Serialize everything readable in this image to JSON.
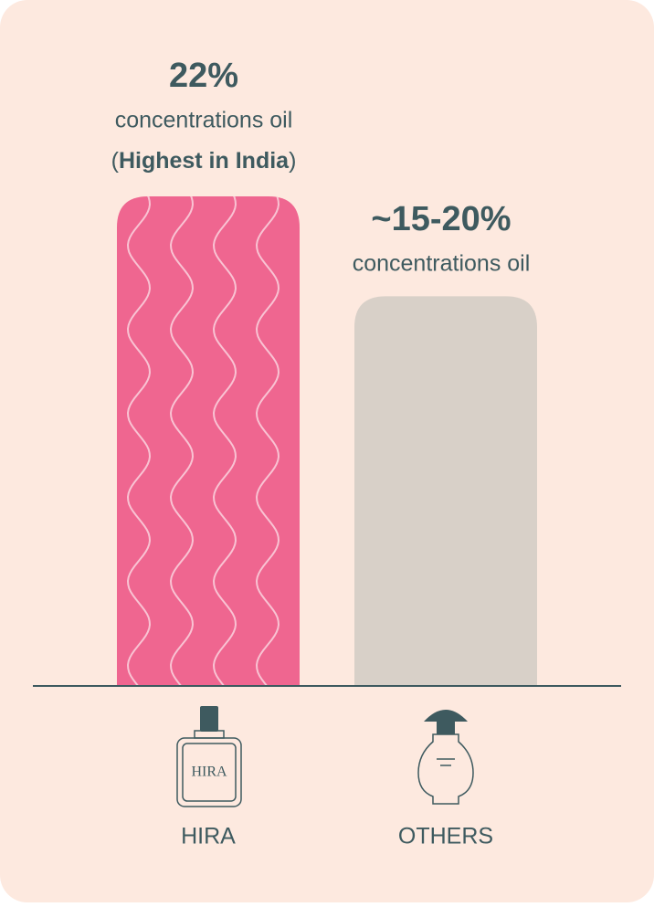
{
  "chart_data": {
    "type": "bar",
    "categories": [
      "HIRA",
      "OTHERS"
    ],
    "values": [
      22,
      17.5
    ],
    "value_labels": [
      "22%",
      "~15-20%"
    ],
    "sublabels": [
      "concentrations oil",
      "concentrations oil"
    ],
    "note_parts": [
      "(",
      "Highest in India",
      ")"
    ],
    "colors": [
      "#ef6690",
      "#d8d0c8"
    ]
  }
}
